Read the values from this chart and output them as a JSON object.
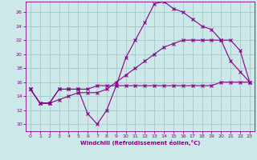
{
  "xlabel": "Windchill (Refroidissement éolien,°C)",
  "background_color": "#cce8e8",
  "grid_color": "#aacccc",
  "line_color": "#880088",
  "xlim": [
    -0.5,
    23.5
  ],
  "ylim": [
    9,
    27.5
  ],
  "yticks": [
    10,
    12,
    14,
    16,
    18,
    20,
    22,
    24,
    26
  ],
  "xticks": [
    0,
    1,
    2,
    3,
    4,
    5,
    6,
    7,
    8,
    9,
    10,
    11,
    12,
    13,
    14,
    15,
    16,
    17,
    18,
    19,
    20,
    21,
    22,
    23
  ],
  "series1_x": [
    0,
    1,
    2,
    3,
    4,
    5,
    6,
    7,
    8,
    9,
    10,
    11,
    12,
    13,
    14,
    15,
    16,
    17,
    18,
    19,
    20,
    21,
    22,
    23
  ],
  "series1_y": [
    15.0,
    13.0,
    13.0,
    15.0,
    15.0,
    15.0,
    11.5,
    10.0,
    12.0,
    15.5,
    19.5,
    22.0,
    24.5,
    27.2,
    27.5,
    26.5,
    26.0,
    25.0,
    24.0,
    23.5,
    22.0,
    19.0,
    17.5,
    16.0
  ],
  "series2_x": [
    0,
    1,
    2,
    3,
    4,
    5,
    6,
    7,
    8,
    9,
    10,
    11,
    12,
    13,
    14,
    15,
    16,
    17,
    18,
    19,
    20,
    21,
    22,
    23
  ],
  "series2_y": [
    15.0,
    13.0,
    13.0,
    15.0,
    15.0,
    15.0,
    15.0,
    15.5,
    15.5,
    15.5,
    15.5,
    15.5,
    15.5,
    15.5,
    15.5,
    15.5,
    15.5,
    15.5,
    15.5,
    15.5,
    16.0,
    16.0,
    16.0,
    16.0
  ],
  "series3_x": [
    0,
    1,
    2,
    3,
    4,
    5,
    6,
    7,
    8,
    9,
    10,
    11,
    12,
    13,
    14,
    15,
    16,
    17,
    18,
    19,
    20,
    21,
    22,
    23
  ],
  "series3_y": [
    15.0,
    13.0,
    13.0,
    13.5,
    14.0,
    14.5,
    14.5,
    14.5,
    15.0,
    16.0,
    17.0,
    18.0,
    19.0,
    20.0,
    21.0,
    21.5,
    22.0,
    22.0,
    22.0,
    22.0,
    22.0,
    22.0,
    20.5,
    16.0
  ]
}
